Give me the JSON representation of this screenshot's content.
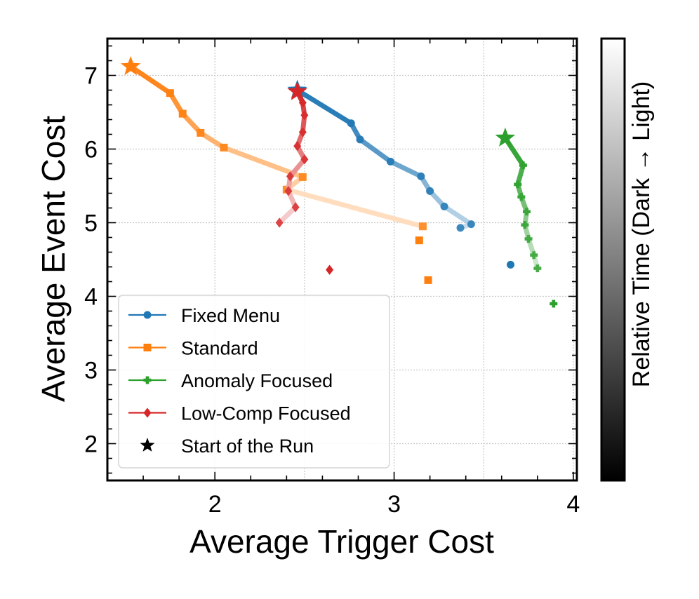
{
  "chart_data": {
    "type": "line",
    "xlabel": "Average Trigger Cost",
    "ylabel": "Average Event Cost",
    "xlim": [
      1.4,
      4.02
    ],
    "ylim": [
      1.5,
      7.5
    ],
    "xticks": [
      2,
      3,
      4
    ],
    "yticks": [
      2,
      3,
      4,
      5,
      6,
      7
    ],
    "xtick_labels": [
      "2",
      "3",
      "4"
    ],
    "ytick_labels": [
      "2",
      "3",
      "4",
      "5",
      "6",
      "7"
    ],
    "grid": true,
    "legend_position": "lower-left",
    "series": [
      {
        "name": "Fixed Menu",
        "marker": "circle",
        "color": "#1f77b4",
        "light_color": "#d4e4f0",
        "x": [
          2.46,
          2.76,
          2.81,
          2.98,
          3.15,
          3.2,
          3.28,
          3.43,
          3.37
        ],
        "y": [
          6.8,
          6.35,
          6.13,
          5.83,
          5.63,
          5.43,
          5.22,
          4.98,
          4.93
        ],
        "outliers": [
          {
            "x": 3.65,
            "y": 4.43
          }
        ]
      },
      {
        "name": "Standard",
        "marker": "square",
        "color": "#ff7f0e",
        "light_color": "#ffe4cc",
        "x": [
          1.53,
          1.75,
          1.82,
          1.92,
          2.05,
          2.49,
          2.4,
          3.16
        ],
        "y": [
          7.12,
          6.76,
          6.48,
          6.22,
          6.02,
          5.62,
          5.45,
          4.95
        ],
        "outliers": [
          {
            "x": 3.14,
            "y": 4.76
          },
          {
            "x": 3.19,
            "y": 4.22
          }
        ]
      },
      {
        "name": "Anomaly Focused",
        "marker": "plus",
        "color": "#2ca02c",
        "light_color": "#d6ecd6",
        "x": [
          3.62,
          3.72,
          3.69,
          3.71,
          3.74,
          3.73,
          3.75,
          3.78,
          3.8
        ],
        "y": [
          6.15,
          5.78,
          5.52,
          5.35,
          5.15,
          4.97,
          4.78,
          4.56,
          4.38
        ],
        "outliers": [
          {
            "x": 3.89,
            "y": 3.9
          }
        ]
      },
      {
        "name": "Low-Comp Focused",
        "marker": "diamond",
        "color": "#d62728",
        "light_color": "#f6d4d4",
        "x": [
          2.46,
          2.49,
          2.5,
          2.49,
          2.46,
          2.5,
          2.42,
          2.41,
          2.45,
          2.36
        ],
        "y": [
          6.78,
          6.63,
          6.46,
          6.23,
          6.04,
          5.86,
          5.63,
          5.43,
          5.21,
          5.0
        ],
        "outliers": [
          {
            "x": 2.64,
            "y": 4.36
          }
        ]
      }
    ],
    "legend": [
      {
        "label": "Fixed Menu",
        "marker": "circle",
        "color": "#1f77b4"
      },
      {
        "label": "Standard",
        "marker": "square",
        "color": "#ff7f0e"
      },
      {
        "label": "Anomaly Focused",
        "marker": "plus",
        "color": "#2ca02c"
      },
      {
        "label": "Low-Comp Focused",
        "marker": "diamond",
        "color": "#d62728"
      },
      {
        "label": "Start of the Run",
        "marker": "star",
        "color": "#000000"
      }
    ],
    "colorbar": {
      "label": "Relative Time (Dark → Light)",
      "from_color": "#000000",
      "to_color": "#ffffff"
    }
  }
}
